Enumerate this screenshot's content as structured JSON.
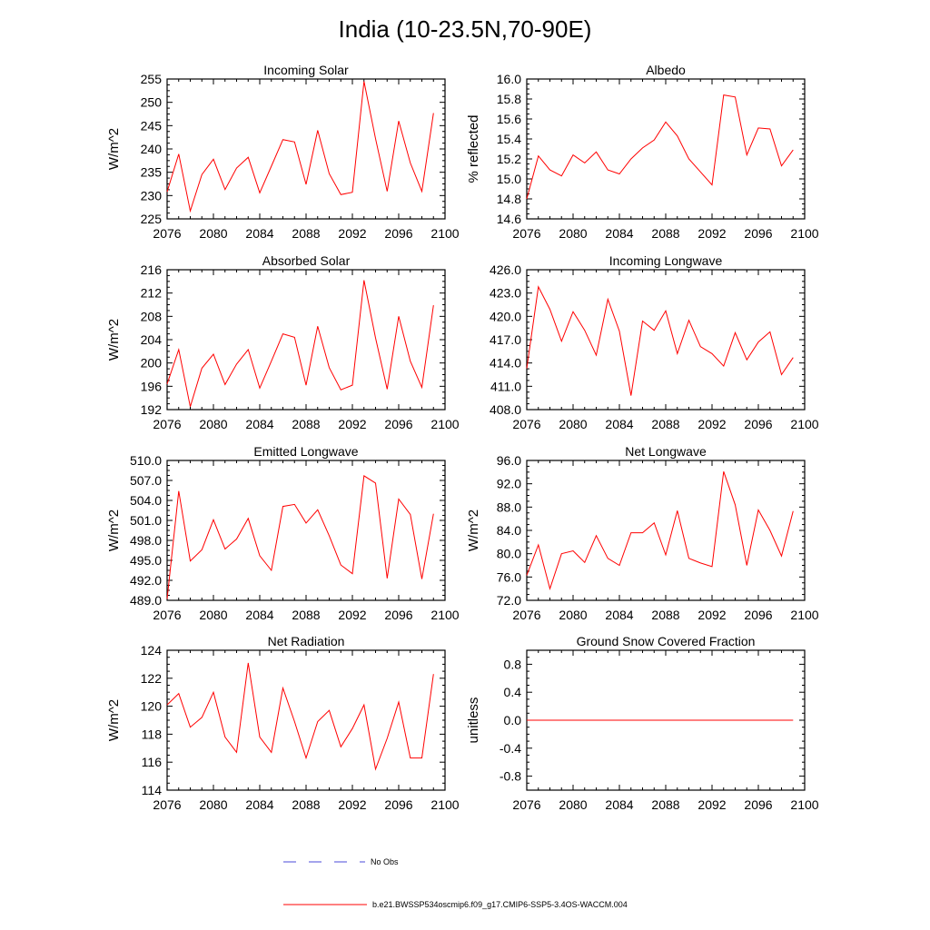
{
  "figure_title": "India (10-23.5N,70-90E)",
  "legend": {
    "obs_label": "No Obs",
    "model_label": "b.e21.BWSSP534oscmip6.f09_g17.CMIP6-SSP5-3.4OS-WACCM.004",
    "obs_color": "#4a4ad8",
    "model_color": "#ff0000"
  },
  "chart_data": [
    {
      "type": "line",
      "title": "Incoming Solar",
      "xlabel": "",
      "ylabel": "W/m^2",
      "xlim": [
        2076,
        2100
      ],
      "ylim": [
        225,
        255
      ],
      "xticks": [
        "2076",
        "2080",
        "2084",
        "2088",
        "2092",
        "2096",
        "2100"
      ],
      "yticks": [
        "225",
        "230",
        "235",
        "240",
        "245",
        "250",
        "255"
      ],
      "x": [
        2076,
        2077,
        2078,
        2079,
        2080,
        2081,
        2082,
        2083,
        2084,
        2085,
        2086,
        2087,
        2088,
        2089,
        2090,
        2091,
        2092,
        2093,
        2094,
        2095,
        2096,
        2097,
        2098,
        2099
      ],
      "values": [
        230.8,
        238.9,
        226.7,
        234.5,
        237.8,
        231.3,
        235.9,
        238.2,
        230.6,
        236.3,
        242.0,
        241.5,
        232.4,
        244.0,
        234.7,
        230.2,
        230.7,
        254.5,
        242.2,
        230.9,
        246.0,
        237.0,
        230.9,
        247.7
      ],
      "color": "#ff0000"
    },
    {
      "type": "line",
      "title": "Albedo",
      "xlabel": "",
      "ylabel": "% reflected",
      "xlim": [
        2076,
        2100
      ],
      "ylim": [
        14.6,
        16.0
      ],
      "xticks": [
        "2076",
        "2080",
        "2084",
        "2088",
        "2092",
        "2096",
        "2100"
      ],
      "yticks": [
        "14.6",
        "14.8",
        "15.0",
        "15.2",
        "15.4",
        "15.6",
        "15.8",
        "16.0"
      ],
      "x": [
        2076,
        2077,
        2078,
        2079,
        2080,
        2081,
        2082,
        2083,
        2084,
        2085,
        2086,
        2087,
        2088,
        2089,
        2090,
        2091,
        2092,
        2093,
        2094,
        2095,
        2096,
        2097,
        2098,
        2099
      ],
      "values": [
        14.8,
        15.23,
        15.09,
        15.03,
        15.24,
        15.16,
        15.27,
        15.09,
        15.05,
        15.2,
        15.31,
        15.39,
        15.57,
        15.43,
        15.2,
        15.07,
        14.94,
        15.84,
        15.82,
        15.24,
        15.51,
        15.5,
        15.13,
        15.29
      ],
      "color": "#ff0000"
    },
    {
      "type": "line",
      "title": "Absorbed Solar",
      "xlabel": "",
      "ylabel": "W/m^2",
      "xlim": [
        2076,
        2100
      ],
      "ylim": [
        192,
        216
      ],
      "xticks": [
        "2076",
        "2080",
        "2084",
        "2088",
        "2092",
        "2096",
        "2100"
      ],
      "yticks": [
        "192",
        "196",
        "200",
        "204",
        "208",
        "212",
        "216"
      ],
      "x": [
        2076,
        2077,
        2078,
        2079,
        2080,
        2081,
        2082,
        2083,
        2084,
        2085,
        2086,
        2087,
        2088,
        2089,
        2090,
        2091,
        2092,
        2093,
        2094,
        2095,
        2096,
        2097,
        2098,
        2099
      ],
      "values": [
        196.4,
        202.3,
        192.5,
        199.1,
        201.5,
        196.3,
        199.8,
        202.3,
        195.7,
        200.3,
        205.0,
        204.4,
        196.2,
        206.3,
        199.2,
        195.4,
        196.2,
        214.2,
        204.3,
        195.5,
        208.0,
        200.3,
        195.8,
        209.9
      ],
      "color": "#ff0000"
    },
    {
      "type": "line",
      "title": "Incoming Longwave",
      "xlabel": "",
      "ylabel": "",
      "xlim": [
        2076,
        2100
      ],
      "ylim": [
        408.0,
        426.0
      ],
      "xticks": [
        "2076",
        "2080",
        "2084",
        "2088",
        "2092",
        "2096",
        "2100"
      ],
      "yticks": [
        "408.0",
        "411.0",
        "414.0",
        "417.0",
        "420.0",
        "423.0",
        "426.0"
      ],
      "x": [
        2076,
        2077,
        2078,
        2079,
        2080,
        2081,
        2082,
        2083,
        2084,
        2085,
        2086,
        2087,
        2088,
        2089,
        2090,
        2091,
        2092,
        2093,
        2094,
        2095,
        2096,
        2097,
        2098,
        2099
      ],
      "values": [
        413.3,
        423.8,
        420.9,
        416.8,
        420.6,
        418.2,
        415.0,
        422.2,
        418.1,
        409.8,
        419.4,
        418.2,
        420.7,
        415.2,
        419.5,
        416.1,
        415.2,
        413.6,
        417.9,
        414.4,
        416.7,
        418.0,
        412.5,
        414.7
      ],
      "color": "#ff0000"
    },
    {
      "type": "line",
      "title": "Emitted Longwave",
      "xlabel": "",
      "ylabel": "W/m^2",
      "xlim": [
        2076,
        2100
      ],
      "ylim": [
        489.0,
        510.0
      ],
      "xticks": [
        "2076",
        "2080",
        "2084",
        "2088",
        "2092",
        "2096",
        "2100"
      ],
      "yticks": [
        "489.0",
        "492.0",
        "495.0",
        "498.0",
        "501.0",
        "504.0",
        "507.0",
        "510.0"
      ],
      "x": [
        2076,
        2077,
        2078,
        2079,
        2080,
        2081,
        2082,
        2083,
        2084,
        2085,
        2086,
        2087,
        2088,
        2089,
        2090,
        2091,
        2092,
        2093,
        2094,
        2095,
        2096,
        2097,
        2098,
        2099
      ],
      "values": [
        489.2,
        505.4,
        494.9,
        496.6,
        501.1,
        496.7,
        498.2,
        501.3,
        495.7,
        493.5,
        503.1,
        503.4,
        500.6,
        502.6,
        498.7,
        494.3,
        493.0,
        507.7,
        506.6,
        492.3,
        504.2,
        501.9,
        492.2,
        502.0
      ],
      "color": "#ff0000"
    },
    {
      "type": "line",
      "title": "Net Longwave",
      "xlabel": "",
      "ylabel": "W/m^2",
      "xlim": [
        2076,
        2100
      ],
      "ylim": [
        72.0,
        96.0
      ],
      "xticks": [
        "2076",
        "2080",
        "2084",
        "2088",
        "2092",
        "2096",
        "2100"
      ],
      "yticks": [
        "72.0",
        "76.0",
        "80.0",
        "84.0",
        "88.0",
        "92.0",
        "96.0"
      ],
      "x": [
        2076,
        2077,
        2078,
        2079,
        2080,
        2081,
        2082,
        2083,
        2084,
        2085,
        2086,
        2087,
        2088,
        2089,
        2090,
        2091,
        2092,
        2093,
        2094,
        2095,
        2096,
        2097,
        2098,
        2099
      ],
      "values": [
        76.3,
        81.5,
        74.0,
        80.0,
        80.5,
        78.5,
        83.1,
        79.2,
        78.0,
        83.6,
        83.6,
        85.3,
        79.8,
        87.4,
        79.2,
        78.4,
        77.8,
        94.1,
        88.4,
        78.0,
        87.5,
        84.0,
        79.6,
        87.3
      ],
      "color": "#ff0000"
    },
    {
      "type": "line",
      "title": "Net Radiation",
      "xlabel": "",
      "ylabel": "W/m^2",
      "xlim": [
        2076,
        2100
      ],
      "ylim": [
        114,
        124
      ],
      "xticks": [
        "2076",
        "2080",
        "2084",
        "2088",
        "2092",
        "2096",
        "2100"
      ],
      "yticks": [
        "114",
        "116",
        "118",
        "120",
        "122",
        "124"
      ],
      "x": [
        2076,
        2077,
        2078,
        2079,
        2080,
        2081,
        2082,
        2083,
        2084,
        2085,
        2086,
        2087,
        2088,
        2089,
        2090,
        2091,
        2092,
        2093,
        2094,
        2095,
        2096,
        2097,
        2098,
        2099
      ],
      "values": [
        120.1,
        120.9,
        118.5,
        119.2,
        121.0,
        117.8,
        116.7,
        123.1,
        117.8,
        116.7,
        121.3,
        118.9,
        116.3,
        118.9,
        119.7,
        117.1,
        118.4,
        120.1,
        115.5,
        117.7,
        120.3,
        116.3,
        116.3,
        122.3
      ],
      "color": "#ff0000"
    },
    {
      "type": "line",
      "title": "Ground Snow Covered Fraction",
      "xlabel": "",
      "ylabel": "unitless",
      "xlim": [
        2076,
        2100
      ],
      "ylim": [
        -1.0,
        1.0
      ],
      "xticks": [
        "2076",
        "2080",
        "2084",
        "2088",
        "2092",
        "2096",
        "2100"
      ],
      "yticks": [
        "-0.8",
        "-0.4",
        "0.0",
        "0.4",
        "0.8"
      ],
      "ytick_values": [
        -0.8,
        -0.4,
        0.0,
        0.4,
        0.8
      ],
      "x": [
        2076,
        2077,
        2078,
        2079,
        2080,
        2081,
        2082,
        2083,
        2084,
        2085,
        2086,
        2087,
        2088,
        2089,
        2090,
        2091,
        2092,
        2093,
        2094,
        2095,
        2096,
        2097,
        2098,
        2099
      ],
      "values": [
        0,
        0,
        0,
        0,
        0,
        0,
        0,
        0,
        0,
        0,
        0,
        0,
        0,
        0,
        0,
        0,
        0,
        0,
        0,
        0,
        0,
        0,
        0,
        0
      ],
      "color": "#ff0000"
    }
  ]
}
